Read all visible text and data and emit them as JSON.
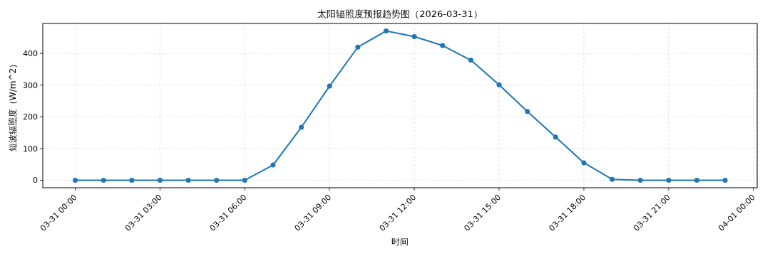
{
  "chart_data": {
    "type": "line",
    "title": "太阳辐照度预报趋势图（2026-03-31）",
    "xlabel": "时间",
    "ylabel": "短波辐照度（W/m^2）",
    "x": [
      "2026-03-31T00:00",
      "2026-03-31T01:00",
      "2026-03-31T02:00",
      "2026-03-31T03:00",
      "2026-03-31T04:00",
      "2026-03-31T05:00",
      "2026-03-31T06:00",
      "2026-03-31T07:00",
      "2026-03-31T08:00",
      "2026-03-31T09:00",
      "2026-03-31T10:00",
      "2026-03-31T11:00",
      "2026-03-31T12:00",
      "2026-03-31T13:00",
      "2026-03-31T14:00",
      "2026-03-31T15:00",
      "2026-03-31T16:00",
      "2026-03-31T17:00",
      "2026-03-31T18:00",
      "2026-03-31T19:00",
      "2026-03-31T20:00",
      "2026-03-31T21:00",
      "2026-03-31T22:00",
      "2026-03-31T23:00"
    ],
    "series": [
      {
        "color": "#1f77b4",
        "values": [
          0,
          0,
          0,
          0,
          0,
          0,
          0,
          48,
          167,
          297,
          420,
          471,
          453,
          425,
          379,
          301,
          217,
          136,
          55,
          3,
          0,
          0,
          0,
          0
        ]
      }
    ],
    "xlim": [
      "2026-03-30T22:51",
      "2026-04-01T00:08"
    ],
    "ylim": [
      -23.6,
      494.6
    ],
    "xticks": [
      {
        "value": "2026-03-31T00:00",
        "label": "03-31 00:00"
      },
      {
        "value": "2026-03-31T03:00",
        "label": "03-31 03:00"
      },
      {
        "value": "2026-03-31T06:00",
        "label": "03-31 06:00"
      },
      {
        "value": "2026-03-31T09:00",
        "label": "03-31 09:00"
      },
      {
        "value": "2026-03-31T12:00",
        "label": "03-31 12:00"
      },
      {
        "value": "2026-03-31T15:00",
        "label": "03-31 15:00"
      },
      {
        "value": "2026-03-31T18:00",
        "label": "03-31 18:00"
      },
      {
        "value": "2026-03-31T21:00",
        "label": "03-31 21:00"
      },
      {
        "value": "2026-04-01T00:00",
        "label": "04-01 00:00"
      }
    ],
    "yticks": [
      0,
      100,
      200,
      300,
      400
    ],
    "grid": true,
    "marker": "circle",
    "line_style": "solid"
  }
}
